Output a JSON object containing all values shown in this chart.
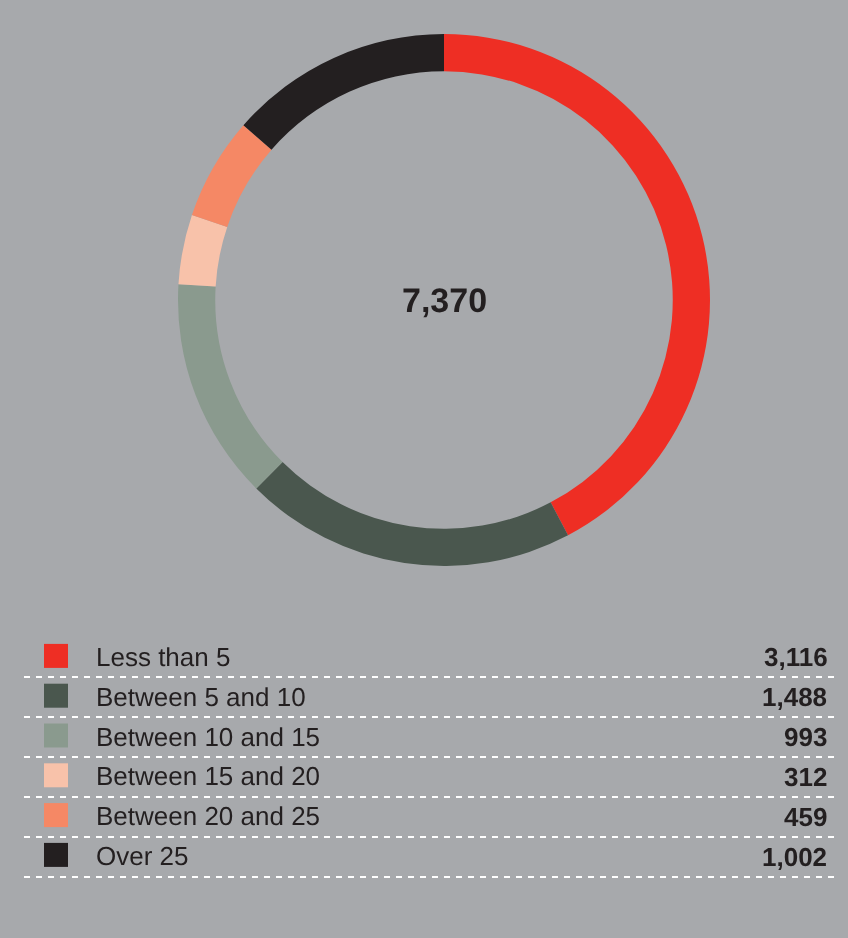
{
  "chart_data": {
    "type": "donut",
    "categories": [
      "Less than 5",
      "Between 5 and 10",
      "Between 10 and 15",
      "Between 15 and 20",
      "Between 20 and 25",
      "Over 25"
    ],
    "values": [
      3116,
      1488,
      993,
      312,
      459,
      1002
    ],
    "colors": [
      "#ee2e24",
      "#4a574e",
      "#8a9a8e",
      "#f8c2aa",
      "#f58865",
      "#231f20"
    ],
    "value_labels": [
      "3,116",
      "1,488",
      "993",
      "312",
      "459",
      "1,002"
    ],
    "annotations": [
      "7,370"
    ],
    "legend": "bottom"
  }
}
